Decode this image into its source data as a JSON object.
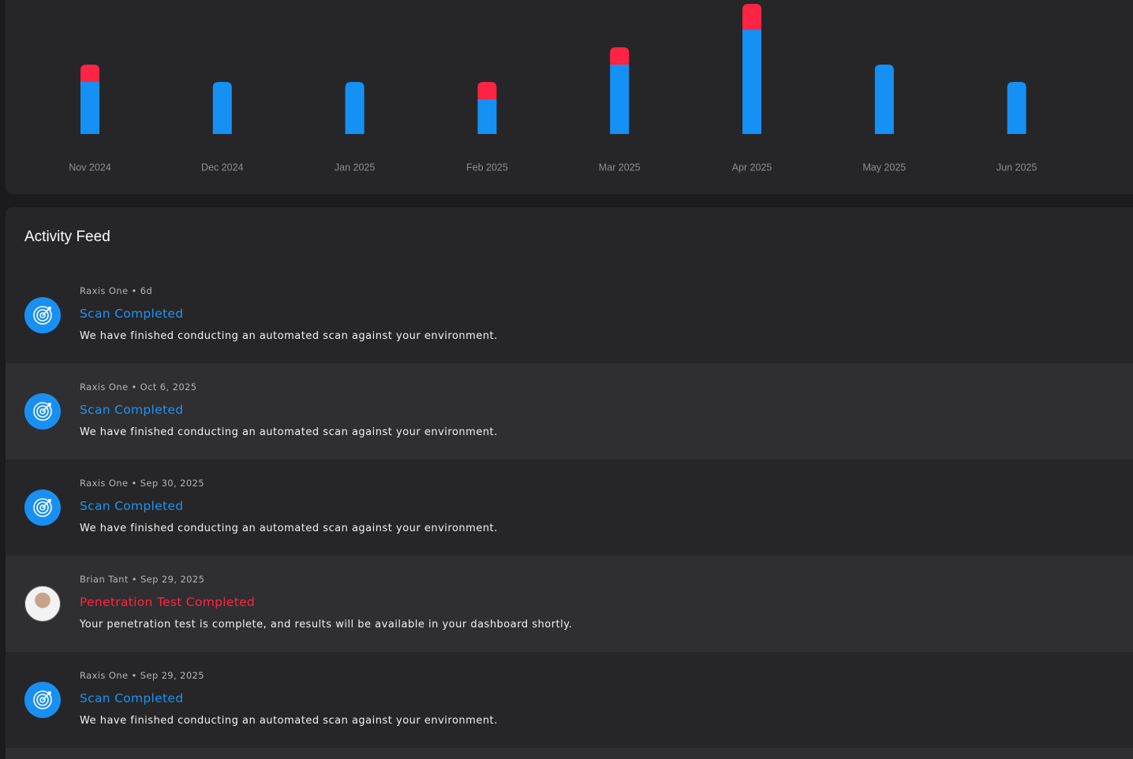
{
  "chart_data": {
    "type": "bar",
    "stacked": true,
    "categories": [
      "Nov 2024",
      "Dec 2024",
      "Jan 2025",
      "Feb 2025",
      "Mar 2025",
      "Apr 2025",
      "May 2025",
      "Jun 2025"
    ],
    "series": [
      {
        "color": "#1590f5",
        "values": [
          3,
          3,
          3,
          2,
          4,
          6,
          4,
          3
        ]
      },
      {
        "color": "#ff2443",
        "values": [
          1,
          0,
          0,
          1,
          1,
          1.5,
          0,
          0
        ]
      }
    ]
  },
  "feed": {
    "title": "Activity Feed",
    "separator": "•",
    "items": [
      {
        "author": "Raxis One",
        "time": "6d",
        "title": "Scan Completed",
        "color": "#1e93f3",
        "description": "We have finished conducting an automated scan against your environment."
      },
      {
        "author": "Raxis One",
        "time": "Oct 6, 2025",
        "title": "Scan Completed",
        "color": "#1e93f3",
        "description": "We have finished conducting an automated scan against your environment."
      },
      {
        "author": "Raxis One",
        "time": "Sep 30, 2025",
        "title": "Scan Completed",
        "color": "#1e93f3",
        "description": "We have finished conducting an automated scan against your environment."
      },
      {
        "author": "Brian Tant",
        "time": "Sep 29, 2025",
        "title": "Penetration Test Completed",
        "color": "#ff2443",
        "description": "Your penetration test is complete, and results will be available in your dashboard shortly."
      },
      {
        "author": "Raxis One",
        "time": "Sep 29, 2025",
        "title": "Scan Completed",
        "color": "#1e93f3",
        "description": "We have finished conducting an automated scan against your environment."
      }
    ]
  }
}
